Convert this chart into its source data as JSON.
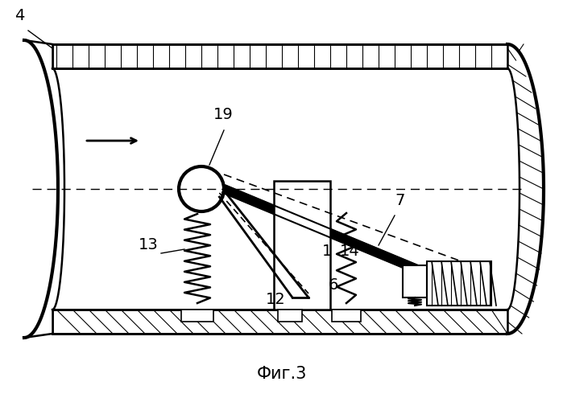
{
  "title": "Фиг.3",
  "label_4": "4",
  "label_19": "19",
  "label_13": "13",
  "label_12": "12",
  "label_7": "7",
  "label_1": "1",
  "label_14": "14",
  "label_6": "6",
  "bg_color": "#ffffff",
  "line_color": "#000000",
  "fig_width": 6.99,
  "fig_height": 4.95,
  "dpi": 100
}
